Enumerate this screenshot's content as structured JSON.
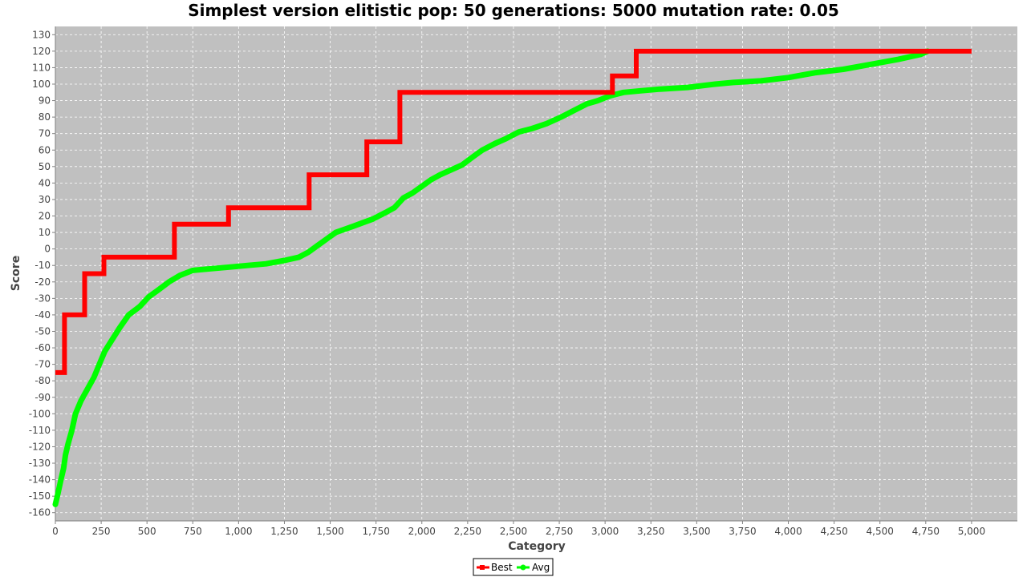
{
  "chart_data": {
    "type": "line",
    "title": "Simplest version elitistic pop: 50 generations: 5000 mutation rate: 0.05",
    "xlabel": "Category",
    "ylabel": "Score",
    "xlim": [
      0,
      5250
    ],
    "ylim": [
      -165,
      135
    ],
    "x_ticks": [
      0,
      250,
      500,
      750,
      1000,
      1250,
      1500,
      1750,
      2000,
      2250,
      2500,
      2750,
      3000,
      3250,
      3500,
      3750,
      4000,
      4250,
      4500,
      4750,
      5000
    ],
    "x_tick_labels": [
      "0",
      "250",
      "500",
      "750",
      "1,000",
      "1,250",
      "1,500",
      "1,750",
      "2,000",
      "2,250",
      "2,500",
      "2,750",
      "3,000",
      "3,250",
      "3,500",
      "3,750",
      "4,000",
      "4,250",
      "4,500",
      "4,750",
      "5,000"
    ],
    "y_ticks": [
      -160,
      -150,
      -140,
      -130,
      -120,
      -110,
      -100,
      -90,
      -80,
      -70,
      -60,
      -50,
      -40,
      -30,
      -20,
      -10,
      0,
      10,
      20,
      30,
      40,
      50,
      60,
      70,
      80,
      90,
      100,
      110,
      120,
      130
    ],
    "grid": true,
    "legend_position": "bottom-center",
    "plot_background": "#c0c0c0",
    "series": [
      {
        "name": "Best",
        "color": "#ff0000",
        "step": true,
        "points": [
          [
            0,
            -75
          ],
          [
            50,
            -75
          ],
          [
            50,
            -40
          ],
          [
            160,
            -40
          ],
          [
            160,
            -15
          ],
          [
            265,
            -15
          ],
          [
            265,
            -5
          ],
          [
            650,
            -5
          ],
          [
            650,
            15
          ],
          [
            945,
            15
          ],
          [
            945,
            25
          ],
          [
            1385,
            25
          ],
          [
            1385,
            45
          ],
          [
            1700,
            45
          ],
          [
            1700,
            65
          ],
          [
            1880,
            65
          ],
          [
            1880,
            95
          ],
          [
            3040,
            95
          ],
          [
            3040,
            105
          ],
          [
            3170,
            105
          ],
          [
            3170,
            120
          ],
          [
            5000,
            120
          ]
        ]
      },
      {
        "name": "Avg",
        "color": "#00ff00",
        "step": false,
        "points": [
          [
            0,
            -155
          ],
          [
            15,
            -148
          ],
          [
            30,
            -140
          ],
          [
            45,
            -133
          ],
          [
            55,
            -125
          ],
          [
            70,
            -118
          ],
          [
            90,
            -110
          ],
          [
            110,
            -100
          ],
          [
            140,
            -92
          ],
          [
            180,
            -84
          ],
          [
            210,
            -78
          ],
          [
            240,
            -70
          ],
          [
            270,
            -62
          ],
          [
            310,
            -55
          ],
          [
            350,
            -48
          ],
          [
            400,
            -40
          ],
          [
            460,
            -35
          ],
          [
            510,
            -29
          ],
          [
            560,
            -25
          ],
          [
            620,
            -20
          ],
          [
            680,
            -16
          ],
          [
            750,
            -13
          ],
          [
            850,
            -12
          ],
          [
            950,
            -11
          ],
          [
            1050,
            -10
          ],
          [
            1150,
            -9
          ],
          [
            1250,
            -7
          ],
          [
            1330,
            -5
          ],
          [
            1380,
            -2
          ],
          [
            1430,
            2
          ],
          [
            1480,
            6
          ],
          [
            1530,
            10
          ],
          [
            1580,
            12
          ],
          [
            1630,
            14
          ],
          [
            1680,
            16
          ],
          [
            1730,
            18
          ],
          [
            1800,
            22
          ],
          [
            1850,
            25
          ],
          [
            1900,
            31
          ],
          [
            1950,
            34
          ],
          [
            2000,
            38
          ],
          [
            2050,
            42
          ],
          [
            2100,
            45
          ],
          [
            2160,
            48
          ],
          [
            2220,
            51
          ],
          [
            2280,
            56
          ],
          [
            2330,
            60
          ],
          [
            2400,
            64
          ],
          [
            2460,
            67
          ],
          [
            2530,
            71
          ],
          [
            2600,
            73
          ],
          [
            2680,
            76
          ],
          [
            2760,
            80
          ],
          [
            2830,
            84
          ],
          [
            2900,
            88
          ],
          [
            2960,
            90
          ],
          [
            3030,
            93
          ],
          [
            3100,
            95
          ],
          [
            3200,
            96
          ],
          [
            3300,
            97
          ],
          [
            3450,
            98
          ],
          [
            3600,
            100
          ],
          [
            3700,
            101
          ],
          [
            3850,
            102
          ],
          [
            4000,
            104
          ],
          [
            4150,
            107
          ],
          [
            4300,
            109
          ],
          [
            4450,
            112
          ],
          [
            4600,
            115
          ],
          [
            4720,
            118
          ],
          [
            4760,
            120
          ]
        ]
      }
    ]
  }
}
